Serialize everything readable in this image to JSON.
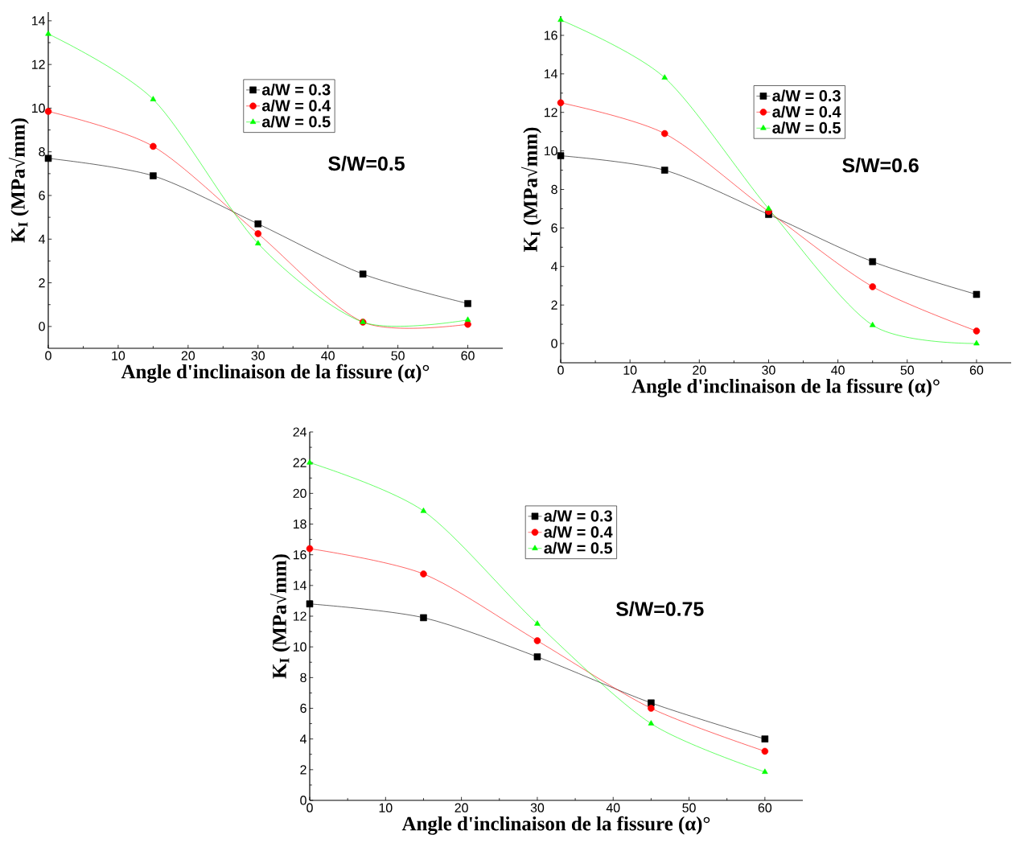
{
  "chart_data": [
    {
      "type": "line",
      "xlabel": "Angle d'inclinaison de la fissure (α)°",
      "ylabel": "K$_{I}$ (MPa√mm)",
      "annotations": [
        "S/W=0.5"
      ],
      "x": [
        0,
        15,
        30,
        45,
        60
      ],
      "xlim": [
        0,
        65
      ],
      "ylim": [
        -1,
        14.4
      ],
      "xticks": [
        0,
        10,
        20,
        30,
        40,
        50,
        60
      ],
      "yticks": [
        0,
        2,
        4,
        6,
        8,
        10,
        12,
        14
      ],
      "legend": "top",
      "line_style": "solid",
      "series": [
        {
          "name": "a/W = 0.3",
          "color": "#000000",
          "marker": "square",
          "values": [
            7.7,
            6.9,
            4.7,
            2.4,
            1.05
          ]
        },
        {
          "name": "a/W = 0.4",
          "color": "#ff0000",
          "marker": "circle",
          "values": [
            9.85,
            8.25,
            4.25,
            0.2,
            0.1
          ]
        },
        {
          "name": "a/W = 0.5",
          "color": "#00ff00",
          "marker": "triangle",
          "values": [
            13.4,
            10.4,
            3.8,
            0.2,
            0.3
          ]
        }
      ]
    },
    {
      "type": "line",
      "xlabel": "Angle d'inclinaison de la fissure (α)°",
      "ylabel": "K$_{I}$ (MPa√mm)",
      "annotations": [
        "S/W=0.6"
      ],
      "x": [
        0,
        15,
        30,
        45,
        60
      ],
      "xlim": [
        0,
        65
      ],
      "ylim": [
        -1,
        17
      ],
      "xticks": [
        0,
        10,
        20,
        30,
        40,
        50,
        60
      ],
      "yticks": [
        0,
        2,
        4,
        6,
        8,
        10,
        12,
        14,
        16
      ],
      "legend": "top",
      "line_style": "solid",
      "series": [
        {
          "name": "a/W = 0.3",
          "color": "#000000",
          "marker": "square",
          "values": [
            9.75,
            9.0,
            6.7,
            4.25,
            2.55
          ]
        },
        {
          "name": "a/W = 0.4",
          "color": "#ff0000",
          "marker": "circle",
          "values": [
            12.5,
            10.9,
            6.85,
            2.95,
            0.65
          ]
        },
        {
          "name": "a/W = 0.5",
          "color": "#00ff00",
          "marker": "triangle",
          "values": [
            16.8,
            13.8,
            7.0,
            0.95,
            0.0
          ]
        }
      ]
    },
    {
      "type": "line",
      "xlabel": "Angle d'inclinaison de la fissure (α)°",
      "ylabel": "K$_{I}$ (MPa√mm)",
      "annotations": [
        "S/W=0.75"
      ],
      "x": [
        0,
        15,
        30,
        45,
        60
      ],
      "xlim": [
        0,
        65
      ],
      "ylim": [
        0,
        24
      ],
      "xticks": [
        0,
        10,
        20,
        30,
        40,
        50,
        60
      ],
      "yticks": [
        0,
        2,
        4,
        6,
        8,
        10,
        12,
        14,
        16,
        18,
        20,
        22,
        24
      ],
      "legend": "top",
      "line_style": "solid",
      "series": [
        {
          "name": "a/W = 0.3",
          "color": "#000000",
          "marker": "square",
          "values": [
            12.8,
            11.9,
            9.35,
            6.35,
            4.0
          ]
        },
        {
          "name": "a/W = 0.4",
          "color": "#ff0000",
          "marker": "circle",
          "values": [
            16.4,
            14.75,
            10.4,
            6.0,
            3.2
          ]
        },
        {
          "name": "a/W = 0.5",
          "color": "#00ff00",
          "marker": "triangle",
          "values": [
            22.0,
            18.85,
            11.5,
            5.0,
            1.85
          ]
        }
      ]
    }
  ]
}
